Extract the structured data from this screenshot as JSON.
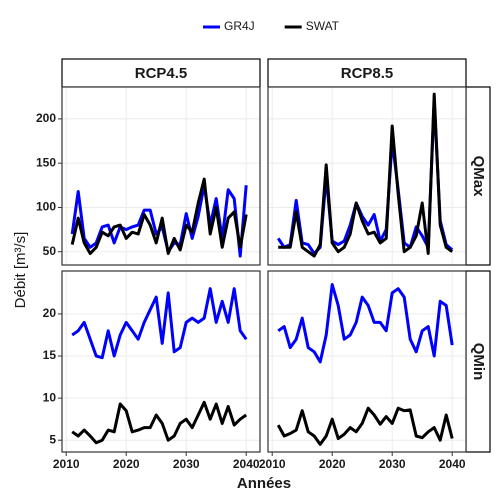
{
  "chart_data": {
    "type": "line",
    "xlabel": "Années",
    "ylabel": "Débit [m³/s]",
    "legend": "top",
    "grid": true,
    "columns": [
      "RCP4.5",
      "RCP8.5"
    ],
    "rows": [
      {
        "name": "QMax",
        "ylim": [
          35,
          236
        ],
        "yticks": [
          50,
          100,
          150,
          200
        ]
      },
      {
        "name": "QMin",
        "ylim": [
          3.6,
          25.1
        ],
        "yticks": [
          5,
          10,
          15,
          20
        ]
      }
    ],
    "x": [
      2011,
      2012,
      2013,
      2014,
      2015,
      2016,
      2017,
      2018,
      2019,
      2020,
      2021,
      2022,
      2023,
      2024,
      2025,
      2026,
      2027,
      2028,
      2029,
      2030,
      2031,
      2032,
      2033,
      2034,
      2035,
      2036,
      2037,
      2038,
      2039,
      2040
    ],
    "xlim": [
      2009.3,
      2042.3
    ],
    "xticks": [
      2010,
      2020,
      2030,
      2040
    ],
    "series": [
      {
        "name": "GR4J",
        "color": "#0000ff",
        "values": [
          [
            [
              70,
              118,
              65,
              55,
              60,
              78,
              80,
              60,
              78,
              75,
              78,
              80,
              97,
              97,
              70,
              78,
              50,
              60,
              58,
              93,
              65,
              90,
              125,
              80,
              110,
              65,
              120,
              110,
              45,
              125
            ],
            [
              65,
              55,
              58,
              108,
              60,
              58,
              48,
              55,
              135,
              62,
              58,
              62,
              80,
              105,
              90,
              80,
              92,
              62,
              75,
              175,
              120,
              60,
              55,
              78,
              68,
              55,
              220,
              85,
              58,
              52
            ]
          ],
          [
            [
              17.5,
              18,
              19,
              17,
              15,
              14.8,
              18,
              15,
              17.5,
              19,
              18,
              17,
              19,
              20.5,
              22,
              16.5,
              22.5,
              15.5,
              16,
              19,
              19.5,
              19,
              19.5,
              23,
              19,
              21.5,
              19,
              23,
              18,
              17
            ],
            [
              18,
              18.5,
              16,
              17,
              19.5,
              16,
              15.5,
              14.3,
              17.5,
              23.5,
              21,
              17,
              17.5,
              19,
              22,
              21,
              19,
              19,
              18,
              22.5,
              23,
              22,
              17,
              15.5,
              18,
              18.5,
              15,
              21.5,
              21,
              16.3
            ]
          ]
        ]
      },
      {
        "name": "SWAT",
        "color": "#000000",
        "values": [
          [
            [
              58,
              88,
              60,
              48,
              55,
              72,
              68,
              78,
              80,
              65,
              72,
              70,
              92,
              80,
              60,
              88,
              48,
              65,
              52,
              80,
              72,
              105,
              132,
              70,
              100,
              55,
              88,
              95,
              55,
              92
            ],
            [
              55,
              55,
              55,
              95,
              55,
              50,
              45,
              58,
              148,
              60,
              50,
              55,
              70,
              105,
              85,
              70,
              72,
              60,
              65,
              192,
              115,
              50,
              55,
              68,
              105,
              48,
              228,
              80,
              55,
              50
            ]
          ],
          [
            [
              6,
              5.5,
              6.2,
              5.5,
              4.7,
              5,
              6.2,
              6,
              9.3,
              8.5,
              6,
              6.2,
              6.5,
              6.5,
              8,
              7,
              5,
              5.5,
              7,
              7.5,
              6.5,
              8,
              9.5,
              7.5,
              9.3,
              7,
              9,
              6.8,
              7.5,
              8
            ],
            [
              6.8,
              5.5,
              5.8,
              6.2,
              8.5,
              6,
              5.5,
              4.5,
              5.5,
              7.5,
              5.2,
              5.7,
              6.5,
              6,
              7,
              8.8,
              8,
              6.9,
              7.8,
              7,
              8.8,
              8.5,
              8.6,
              5.5,
              5.3,
              6,
              6.5,
              5,
              8,
              5.2
            ]
          ]
        ]
      }
    ]
  }
}
